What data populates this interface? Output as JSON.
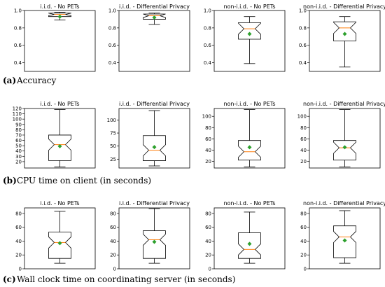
{
  "chart_data": [
    {
      "type": "box",
      "caption": {
        "letter": "(a)",
        "text": "Accuracy"
      },
      "ylim": [
        0.3,
        1.0
      ],
      "yticks": [
        0.4,
        0.6,
        0.8,
        1.0
      ],
      "tick_labels": [
        "0.4",
        "0.6",
        "0.8",
        "1.0"
      ],
      "panels": [
        {
          "title": "i.i.d. - No PETs",
          "whisker_low": 0.89,
          "q1": 0.93,
          "median": 0.955,
          "q3": 0.97,
          "whisker_high": 0.98,
          "mean": 0.93
        },
        {
          "title": "i.i.d. - Differential Privacy",
          "whisker_low": 0.84,
          "q1": 0.9,
          "median": 0.94,
          "q3": 0.96,
          "whisker_high": 0.97,
          "mean": 0.92
        },
        {
          "title": "non-i.i.d. - No PETs",
          "whisker_low": 0.39,
          "q1": 0.67,
          "median": 0.79,
          "q3": 0.86,
          "whisker_high": 0.93,
          "mean": 0.73
        },
        {
          "title": "non-i.i.d. - Differential Privacy",
          "whisker_low": 0.35,
          "q1": 0.65,
          "median": 0.8,
          "q3": 0.87,
          "whisker_high": 0.93,
          "mean": 0.73
        }
      ]
    },
    {
      "type": "box",
      "caption": {
        "letter": "(b)",
        "text": "CPU time on client (in seconds)"
      },
      "panels": [
        {
          "title": "i.i.d. - No PETs",
          "ylim": [
            8,
            120
          ],
          "yticks": [
            20,
            30,
            40,
            50,
            60,
            70,
            80,
            90,
            100,
            110,
            120
          ],
          "tick_labels": [
            "20",
            "30",
            "40",
            "50",
            "60",
            "70",
            "80",
            "90",
            "100",
            "110",
            "120"
          ],
          "whisker_low": 10,
          "q1": 22,
          "median": 52,
          "q3": 70,
          "whisker_high": 118,
          "mean": 49
        },
        {
          "title": "i.i.d. - Differential Privacy",
          "ylim": [
            8,
            122
          ],
          "yticks": [
            25,
            50,
            75,
            100
          ],
          "tick_labels": [
            "25",
            "50",
            "75",
            "100"
          ],
          "whisker_low": 12,
          "q1": 22,
          "median": 42,
          "q3": 70,
          "whisker_high": 118,
          "mean": 48
        },
        {
          "title": "non-i.i.d. - No PETs",
          "ylim": [
            8,
            114
          ],
          "yticks": [
            20,
            40,
            60,
            80,
            100
          ],
          "tick_labels": [
            "20",
            "40",
            "60",
            "80",
            "100"
          ],
          "whisker_low": 10,
          "q1": 22,
          "median": 37,
          "q3": 57,
          "whisker_high": 112,
          "mean": 45
        },
        {
          "title": "non-i.i.d. - Differential Privacy",
          "ylim": [
            8,
            114
          ],
          "yticks": [
            20,
            40,
            60,
            80,
            100
          ],
          "tick_labels": [
            "20",
            "40",
            "60",
            "80",
            "100"
          ],
          "whisker_low": 10,
          "q1": 22,
          "median": 44,
          "q3": 57,
          "whisker_high": 112,
          "mean": 45
        }
      ]
    },
    {
      "type": "box",
      "caption": {
        "letter": "(c)",
        "text": "Wall clock time on coordinating server (in seconds)"
      },
      "ylim": [
        0,
        88
      ],
      "yticks": [
        0,
        20,
        40,
        60,
        80
      ],
      "tick_labels": [
        "0",
        "20",
        "40",
        "60",
        "80"
      ],
      "panels": [
        {
          "title": "i.i.d. - No PETs",
          "whisker_low": 8,
          "q1": 15,
          "median": 38,
          "q3": 53,
          "whisker_high": 83,
          "mean": 37
        },
        {
          "title": "i.i.d. - Differential Privacy",
          "whisker_low": 8,
          "q1": 15,
          "median": 42,
          "q3": 55,
          "whisker_high": 87,
          "mean": 39
        },
        {
          "title": "non-i.i.d. - No PETs",
          "whisker_low": 8,
          "q1": 15,
          "median": 28,
          "q3": 52,
          "whisker_high": 82,
          "mean": 36
        },
        {
          "title": "non-i.i.d. - Differential Privacy",
          "whisker_low": 8,
          "q1": 16,
          "median": 46,
          "q3": 62,
          "whisker_high": 84,
          "mean": 41
        }
      ]
    }
  ],
  "colors": {
    "median": "#ff7f0e",
    "mean": "#2ca02c",
    "box": "#000000"
  }
}
